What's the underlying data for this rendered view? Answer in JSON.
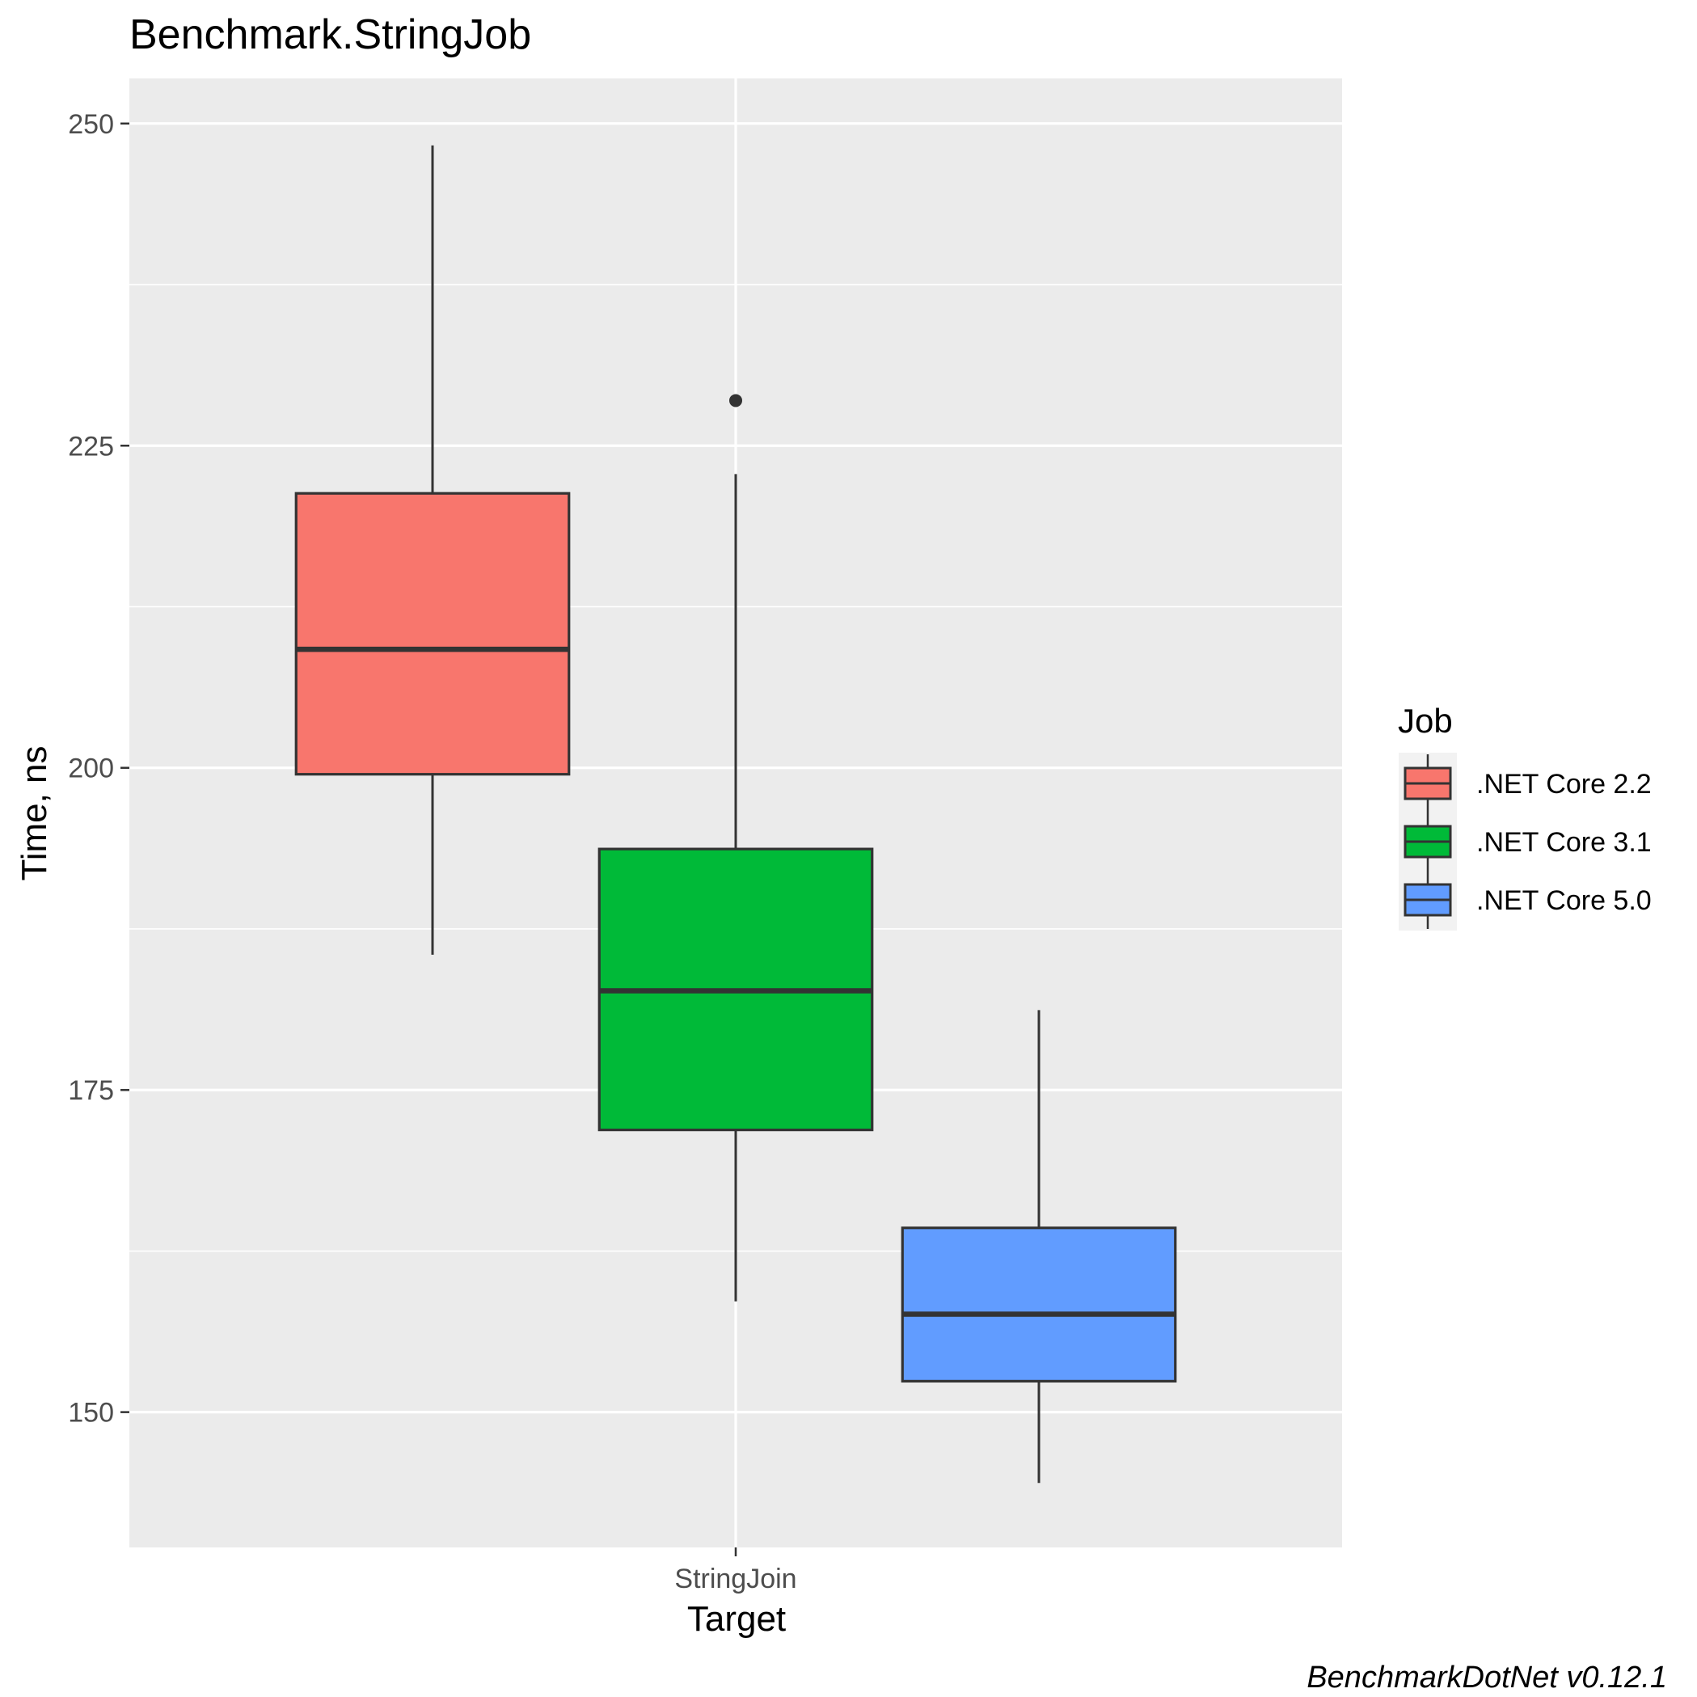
{
  "chart_data": {
    "type": "boxplot",
    "title": "Benchmark.StringJob",
    "xlabel": "Target",
    "ylabel": "Time, ns",
    "caption": "BenchmarkDotNet v0.12.1",
    "categories": [
      "StringJoin"
    ],
    "ylim": [
      139.5,
      253.5
    ],
    "y_ticks": [
      150,
      175,
      200,
      225,
      250
    ],
    "grid": true,
    "legend": {
      "title": "Job",
      "placement": "right"
    },
    "series": [
      {
        "name": ".NET Core 2.2",
        "color": "#F8766D",
        "category": "StringJoin",
        "whisker_low": 185.5,
        "q1": 199.5,
        "median": 209.2,
        "q3": 221.3,
        "whisker_high": 248.3,
        "outliers": []
      },
      {
        "name": ".NET Core 3.1",
        "color": "#00BA38",
        "category": "StringJoin",
        "whisker_low": 158.6,
        "q1": 171.9,
        "median": 182.7,
        "q3": 193.7,
        "whisker_high": 222.8,
        "outliers": [
          228.5
        ]
      },
      {
        "name": ".NET Core 5.0",
        "color": "#619CFF",
        "category": "StringJoin",
        "whisker_low": 144.5,
        "q1": 152.4,
        "median": 157.6,
        "q3": 164.3,
        "whisker_high": 181.2,
        "outliers": []
      }
    ]
  }
}
